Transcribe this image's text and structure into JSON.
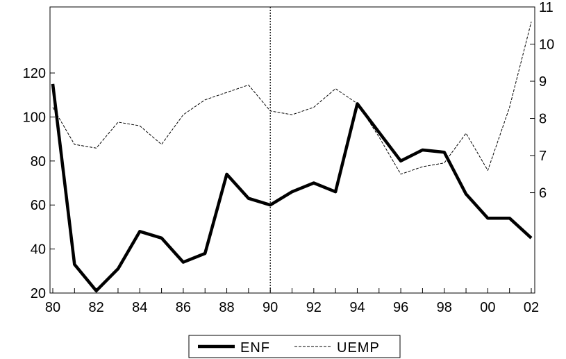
{
  "chart_data": {
    "type": "line",
    "x": [
      "80",
      "81",
      "82",
      "83",
      "84",
      "85",
      "86",
      "87",
      "88",
      "89",
      "90",
      "91",
      "92",
      "93",
      "94",
      "95",
      "96",
      "97",
      "98",
      "99",
      "00",
      "01",
      "02"
    ],
    "x_tick_labels": [
      "80",
      "82",
      "84",
      "86",
      "88",
      "90",
      "92",
      "94",
      "96",
      "98",
      "00",
      "02"
    ],
    "vline_at": "90",
    "left_axis": {
      "ylim": [
        20,
        150
      ],
      "ticks": [
        "20",
        "40",
        "60",
        "80",
        "100",
        "120"
      ]
    },
    "right_axis": {
      "ylim": [
        3.3,
        11
      ],
      "ticks": [
        "6",
        "7",
        "8",
        "9",
        "10",
        "11"
      ]
    },
    "series": [
      {
        "name": "ENF",
        "axis": "left",
        "style": "solid-thick",
        "values": [
          115,
          33,
          21,
          31,
          48,
          45,
          34,
          38,
          74,
          63,
          60,
          66,
          70,
          66,
          106,
          93,
          80,
          85,
          84,
          65,
          54,
          54,
          45
        ]
      },
      {
        "name": "UEMP",
        "axis": "right",
        "style": "dashed-thin",
        "values": [
          8.3,
          7.3,
          7.2,
          7.9,
          7.8,
          7.3,
          8.1,
          8.5,
          8.7,
          8.9,
          8.2,
          8.1,
          8.3,
          8.8,
          8.4,
          7.5,
          6.5,
          6.7,
          6.8,
          7.6,
          6.6,
          8.3,
          10.6
        ]
      }
    ],
    "legend": {
      "placement": "bottom-center",
      "entries": [
        "ENF",
        "UEMP"
      ]
    },
    "grid": false
  }
}
